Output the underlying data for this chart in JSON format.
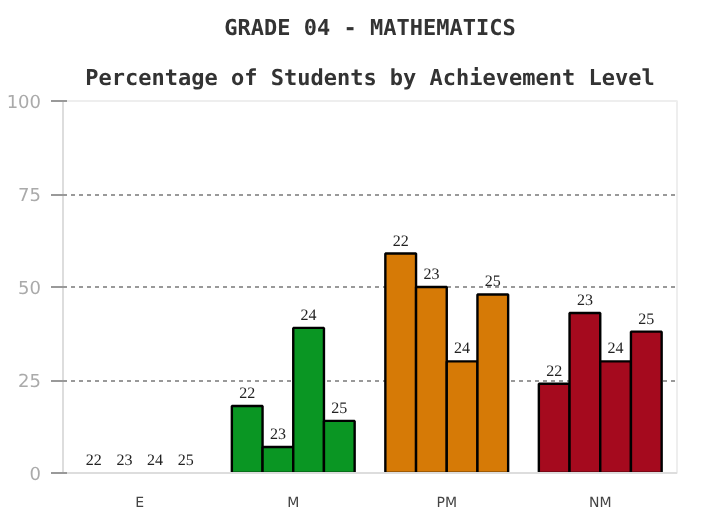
{
  "chart_data": {
    "type": "bar",
    "title": "GRADE 04 - MATHEMATICS",
    "subtitle": "Percentage of Students by Achievement Level",
    "categories": [
      "E",
      "M",
      "PM",
      "NM"
    ],
    "series": [
      {
        "name": "22",
        "colors": [
          "#2060a0",
          "#0a9623",
          "#d67a06",
          "#a50a1e"
        ],
        "values": [
          0,
          18,
          59,
          24
        ]
      },
      {
        "name": "23",
        "colors": [
          "#2060a0",
          "#0a9623",
          "#d67a06",
          "#a50a1e"
        ],
        "values": [
          0,
          7,
          50,
          43
        ]
      },
      {
        "name": "24",
        "colors": [
          "#2060a0",
          "#0a9623",
          "#d67a06",
          "#a50a1e"
        ],
        "values": [
          0,
          39,
          30,
          30
        ]
      },
      {
        "name": "25",
        "colors": [
          "#2060a0",
          "#0a9623",
          "#d67a06",
          "#a50a1e"
        ],
        "values": [
          0,
          14,
          48,
          38
        ]
      }
    ],
    "ylim": [
      0,
      100
    ],
    "yticks": [
      0,
      25,
      50,
      75,
      100
    ],
    "grid": "y",
    "legend": false
  }
}
